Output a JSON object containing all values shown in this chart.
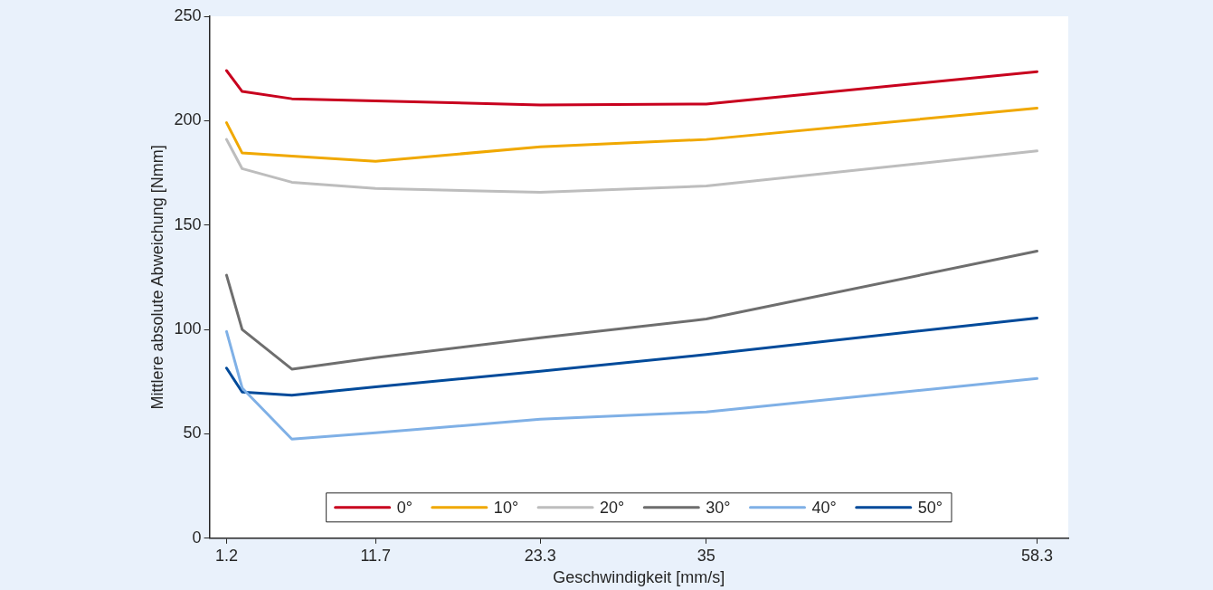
{
  "chart_data": {
    "type": "line",
    "xlabel": "Geschwindigkeit [mm/s]",
    "ylabel": "Mittlere absolute Abweichung [Nmm]",
    "x": [
      1.2,
      2.3,
      5.8,
      11.7,
      23.3,
      35,
      58.3
    ],
    "xlim": [
      0,
      60.5
    ],
    "xticks": [
      1.2,
      11.7,
      23.3,
      35,
      58.3
    ],
    "ylim": [
      0,
      250
    ],
    "yticks": [
      0,
      50,
      100,
      150,
      200,
      250
    ],
    "grid": false,
    "legend": "bottom",
    "marker": "none",
    "line_style": "solid",
    "series": [
      {
        "name": "0°",
        "color": "#c8001e",
        "values": [
          224,
          214,
          210.5,
          209.5,
          207.5,
          208,
          223.5
        ]
      },
      {
        "name": "10°",
        "color": "#f0a800",
        "values": [
          199,
          184.5,
          183,
          180.5,
          187.5,
          191,
          206
        ]
      },
      {
        "name": "20°",
        "color": "#bdbdbd",
        "values": [
          191,
          177,
          170.5,
          167.5,
          165.7,
          168.7,
          185.5
        ]
      },
      {
        "name": "30°",
        "color": "#6e6e6e",
        "values": [
          126,
          100,
          81,
          86.5,
          96,
          105,
          137.5
        ]
      },
      {
        "name": "40°",
        "color": "#7fb0e6",
        "values": [
          99,
          72,
          47.5,
          50.5,
          57,
          60.5,
          76.5
        ]
      },
      {
        "name": "50°",
        "color": "#004a9a",
        "values": [
          81.5,
          70,
          68.5,
          72.5,
          80,
          88,
          105.5
        ]
      }
    ]
  }
}
